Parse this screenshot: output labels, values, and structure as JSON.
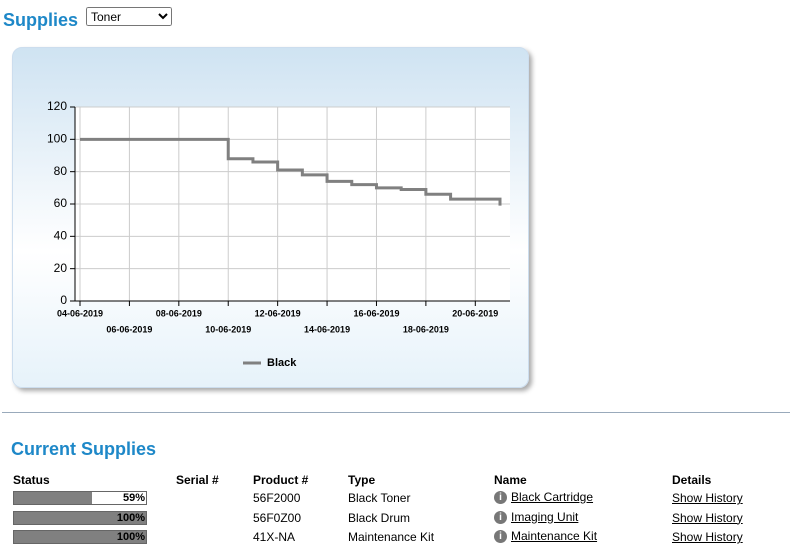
{
  "header": {
    "title": "Supplies",
    "selector": "Toner"
  },
  "chart_data": {
    "type": "line",
    "x": [
      "04-06-2019",
      "05-06-2019",
      "06-06-2019",
      "07-06-2019",
      "08-06-2019",
      "09-06-2019",
      "10-06-2019",
      "11-06-2019",
      "12-06-2019",
      "13-06-2019",
      "14-06-2019",
      "15-06-2019",
      "16-06-2019",
      "17-06-2019",
      "18-06-2019",
      "19-06-2019",
      "20-06-2019",
      "21-06-2019"
    ],
    "series": [
      {
        "name": "Black",
        "color": "#808080",
        "values": [
          100,
          100,
          100,
          100,
          100,
          100,
          88,
          86,
          81,
          78,
          74,
          72,
          70,
          69,
          66,
          63,
          63,
          59
        ]
      }
    ],
    "xlim": [
      "04-06-2019",
      "21-06-2019"
    ],
    "xticks": [
      "04-06-2019",
      "06-06-2019",
      "08-06-2019",
      "10-06-2019",
      "12-06-2019",
      "14-06-2019",
      "16-06-2019",
      "18-06-2019",
      "20-06-2019"
    ],
    "ylim": [
      0,
      120
    ],
    "yticks": [
      0,
      20,
      40,
      60,
      80,
      100,
      120
    ],
    "grid": true,
    "step": true,
    "legend": "bottom"
  },
  "section": {
    "title": "Current Supplies"
  },
  "table": {
    "headers": [
      "Status",
      "Serial #",
      "Product #",
      "Type",
      "Name",
      "Details"
    ],
    "rows": [
      {
        "status": 59,
        "status_label": "59%",
        "serial": "",
        "product": "56F2000",
        "type": "Black Toner",
        "name": "Black Cartridge",
        "details": "Show History"
      },
      {
        "status": 100,
        "status_label": "100%",
        "serial": "",
        "product": "56F0Z00",
        "type": "Black Drum",
        "name": "Imaging Unit",
        "details": "Show History"
      },
      {
        "status": 100,
        "status_label": "100%",
        "serial": "",
        "product": "41X-NA",
        "type": "Maintenance Kit",
        "name": "Maintenance Kit",
        "details": "Show History"
      }
    ]
  }
}
